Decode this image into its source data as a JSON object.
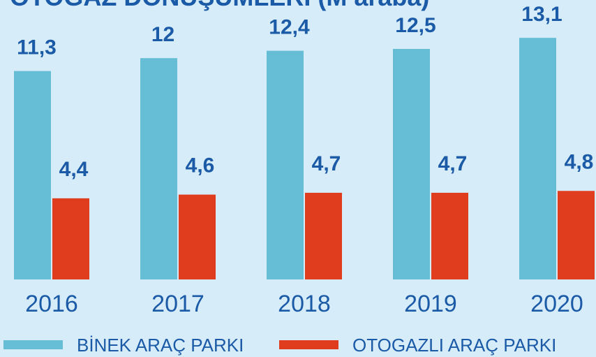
{
  "chart_data": {
    "type": "bar",
    "title": "OTOGAZ DÖNÜŞÜMLERİ (M araba)",
    "categories": [
      "2016",
      "2017",
      "2018",
      "2019",
      "2020"
    ],
    "series": [
      {
        "name": "BİNEK ARAÇ PARKI",
        "color": "#66bed6",
        "values": [
          11.3,
          12,
          12.4,
          12.5,
          13.1
        ],
        "value_labels": [
          "11,3",
          "12",
          "12,4",
          "12,5",
          "13,1"
        ]
      },
      {
        "name": "OTOGAZLI ARAÇ PARKI",
        "color": "#e03c1e",
        "values": [
          4.4,
          4.6,
          4.7,
          4.7,
          4.8
        ],
        "value_labels": [
          "4,4",
          "4,6",
          "4,7",
          "4,7",
          "4,8"
        ]
      }
    ],
    "ylim": [
      0,
      15
    ]
  }
}
